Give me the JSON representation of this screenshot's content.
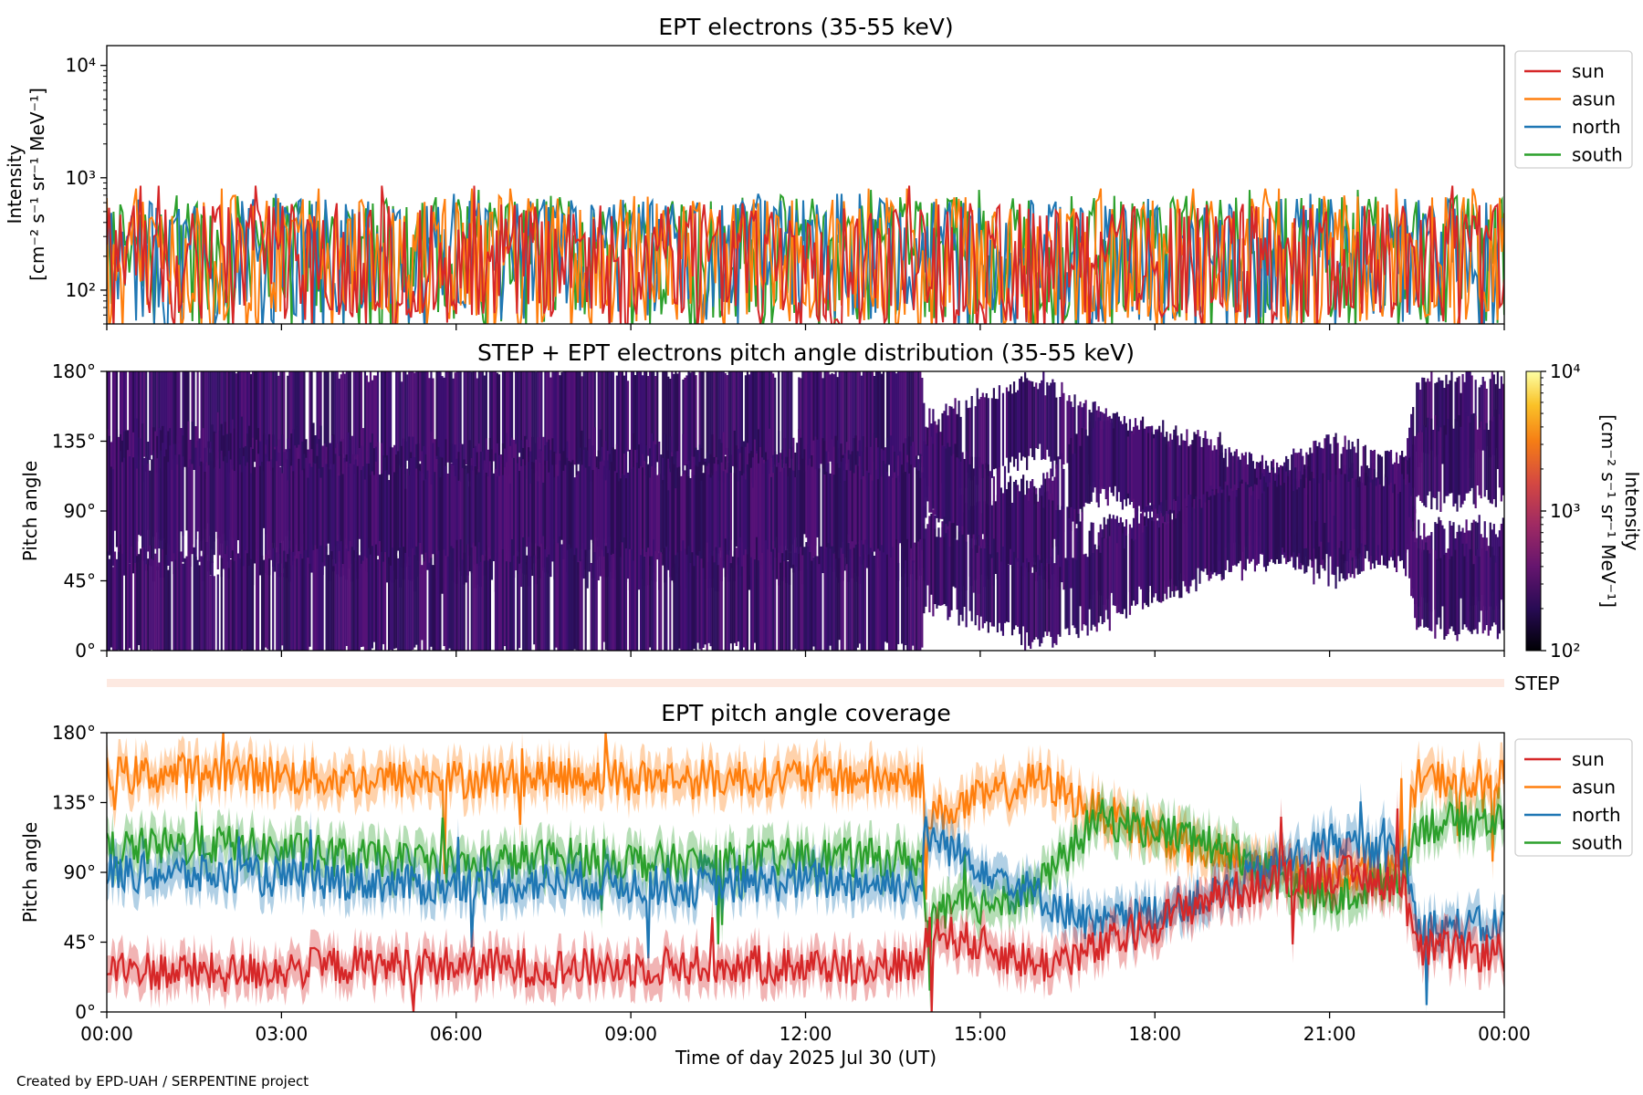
{
  "credit": "Created by EPD-UAH / SERPENTINE project",
  "colors": {
    "sun": "#d62728",
    "asun": "#ff7f0e",
    "north": "#1f77b4",
    "south": "#2ca02c",
    "pad": "#3b0f70",
    "step_bar": "#fde9e1"
  },
  "chart_data": [
    {
      "type": "line",
      "title": "EPT electrons (35-55 keV)",
      "ylabel_lines": [
        "Intensity",
        "[cm⁻² s⁻¹ sr⁻¹ MeV⁻¹]"
      ],
      "yscale": "log",
      "ylim": [
        50,
        15000
      ],
      "ytick_labels": [
        "10²",
        "10³",
        "10⁴"
      ],
      "ytick_values": [
        100,
        1000,
        10000
      ],
      "xlim": [
        0,
        24
      ],
      "legend": "outside-right",
      "series_names": [
        "sun",
        "asun",
        "north",
        "south"
      ],
      "series": [
        {
          "name": "south",
          "typical_range": [
            80,
            700
          ],
          "max": 780
        },
        {
          "name": "north",
          "typical_range": [
            80,
            650
          ],
          "max": 720
        },
        {
          "name": "asun",
          "typical_range": [
            60,
            700
          ],
          "max": 800
        },
        {
          "name": "sun",
          "typical_range": [
            60,
            600
          ],
          "max": 850
        }
      ]
    },
    {
      "type": "heatmap",
      "title": "STEP + EPT electrons pitch angle distribution (35-55 keV)",
      "ylabel": "Pitch angle",
      "ylim": [
        0,
        180
      ],
      "ytick_labels": [
        "0°",
        "45°",
        "90°",
        "135°",
        "180°"
      ],
      "ytick_values": [
        0,
        45,
        90,
        135,
        180
      ],
      "colorbar": {
        "label_lines": [
          "Intensity",
          "[cm⁻² s⁻¹ sr⁻¹ MeV⁻¹]"
        ],
        "scale": "log",
        "range": [
          100,
          10000
        ],
        "tick_labels": [
          "10²",
          "10³",
          "10⁴"
        ]
      },
      "step_label": "STEP",
      "band_center_deg": [
        {
          "x": 0,
          "asun": 152,
          "north": 90,
          "south": 105,
          "sun": 28
        },
        {
          "x": 2,
          "asun": 155,
          "north": 88,
          "south": 108,
          "sun": 25
        },
        {
          "x": 4,
          "asun": 150,
          "north": 85,
          "south": 100,
          "sun": 30
        },
        {
          "x": 6,
          "asun": 150,
          "north": 80,
          "south": 95,
          "sun": 30
        },
        {
          "x": 8,
          "asun": 152,
          "north": 85,
          "south": 100,
          "sun": 28
        },
        {
          "x": 10,
          "asun": 150,
          "north": 80,
          "south": 95,
          "sun": 30
        },
        {
          "x": 12,
          "asun": 152,
          "north": 85,
          "south": 100,
          "sun": 30
        },
        {
          "x": 14,
          "asun": 150,
          "north": 82,
          "south": 98,
          "sun": 30
        },
        {
          "x": 14.05,
          "asun": 125,
          "north": 115,
          "south": 60,
          "sun": 55
        },
        {
          "x": 16,
          "asun": 150,
          "north": 75,
          "south": 80,
          "sun": 30
        },
        {
          "x": 17,
          "asun": 130,
          "north": 55,
          "south": 125,
          "sun": 40
        },
        {
          "x": 19,
          "asun": 100,
          "north": 75,
          "south": 110,
          "sun": 75
        },
        {
          "x": 21,
          "asun": 85,
          "north": 110,
          "south": 70,
          "sun": 90
        },
        {
          "x": 22.3,
          "asun": 95,
          "north": 100,
          "south": 90,
          "sun": 82
        },
        {
          "x": 22.5,
          "asun": 150,
          "north": 55,
          "south": 120,
          "sun": 40
        },
        {
          "x": 24,
          "asun": 150,
          "north": 55,
          "south": 125,
          "sun": 38
        }
      ]
    },
    {
      "type": "line",
      "title": "EPT pitch angle coverage",
      "ylabel": "Pitch angle",
      "xlabel": "Time of day 2025 Jul 30 (UT)",
      "ylim": [
        0,
        180
      ],
      "ytick_labels": [
        "0°",
        "45°",
        "90°",
        "135°",
        "180°"
      ],
      "ytick_values": [
        0,
        45,
        90,
        135,
        180
      ],
      "xlim": [
        0,
        24
      ],
      "xtick_labels": [
        "00:00",
        "03:00",
        "06:00",
        "09:00",
        "12:00",
        "15:00",
        "18:00",
        "21:00",
        "00:00"
      ],
      "xtick_values": [
        0,
        3,
        6,
        9,
        12,
        15,
        18,
        21,
        24
      ],
      "legend": "outside-right",
      "series_names": [
        "sun",
        "asun",
        "north",
        "south"
      ],
      "series": [
        {
          "name": "asun",
          "x": [
            0,
            2,
            4,
            6,
            8,
            10,
            12,
            14,
            14.05,
            16,
            17,
            19,
            21,
            22.3,
            22.5,
            24
          ],
          "y": [
            152,
            155,
            150,
            150,
            152,
            150,
            152,
            150,
            125,
            150,
            130,
            100,
            85,
            95,
            150,
            150
          ]
        },
        {
          "name": "south",
          "x": [
            0,
            2,
            4,
            6,
            8,
            10,
            12,
            14,
            14.05,
            16,
            17,
            19,
            21,
            22.3,
            22.5,
            24
          ],
          "y": [
            105,
            108,
            100,
            95,
            100,
            95,
            100,
            98,
            60,
            80,
            125,
            110,
            70,
            90,
            120,
            125
          ]
        },
        {
          "name": "north",
          "x": [
            0,
            2,
            4,
            6,
            8,
            10,
            12,
            14,
            14.05,
            16,
            17,
            19,
            21,
            22.3,
            22.5,
            24
          ],
          "y": [
            90,
            88,
            85,
            80,
            85,
            80,
            85,
            82,
            115,
            75,
            55,
            75,
            110,
            100,
            55,
            55
          ]
        },
        {
          "name": "sun",
          "x": [
            0,
            2,
            4,
            6,
            8,
            10,
            12,
            14,
            14.05,
            16,
            17,
            19,
            21,
            22.3,
            22.5,
            24
          ],
          "y": [
            28,
            25,
            30,
            30,
            28,
            30,
            30,
            30,
            55,
            30,
            40,
            75,
            90,
            82,
            40,
            38
          ]
        }
      ]
    }
  ]
}
